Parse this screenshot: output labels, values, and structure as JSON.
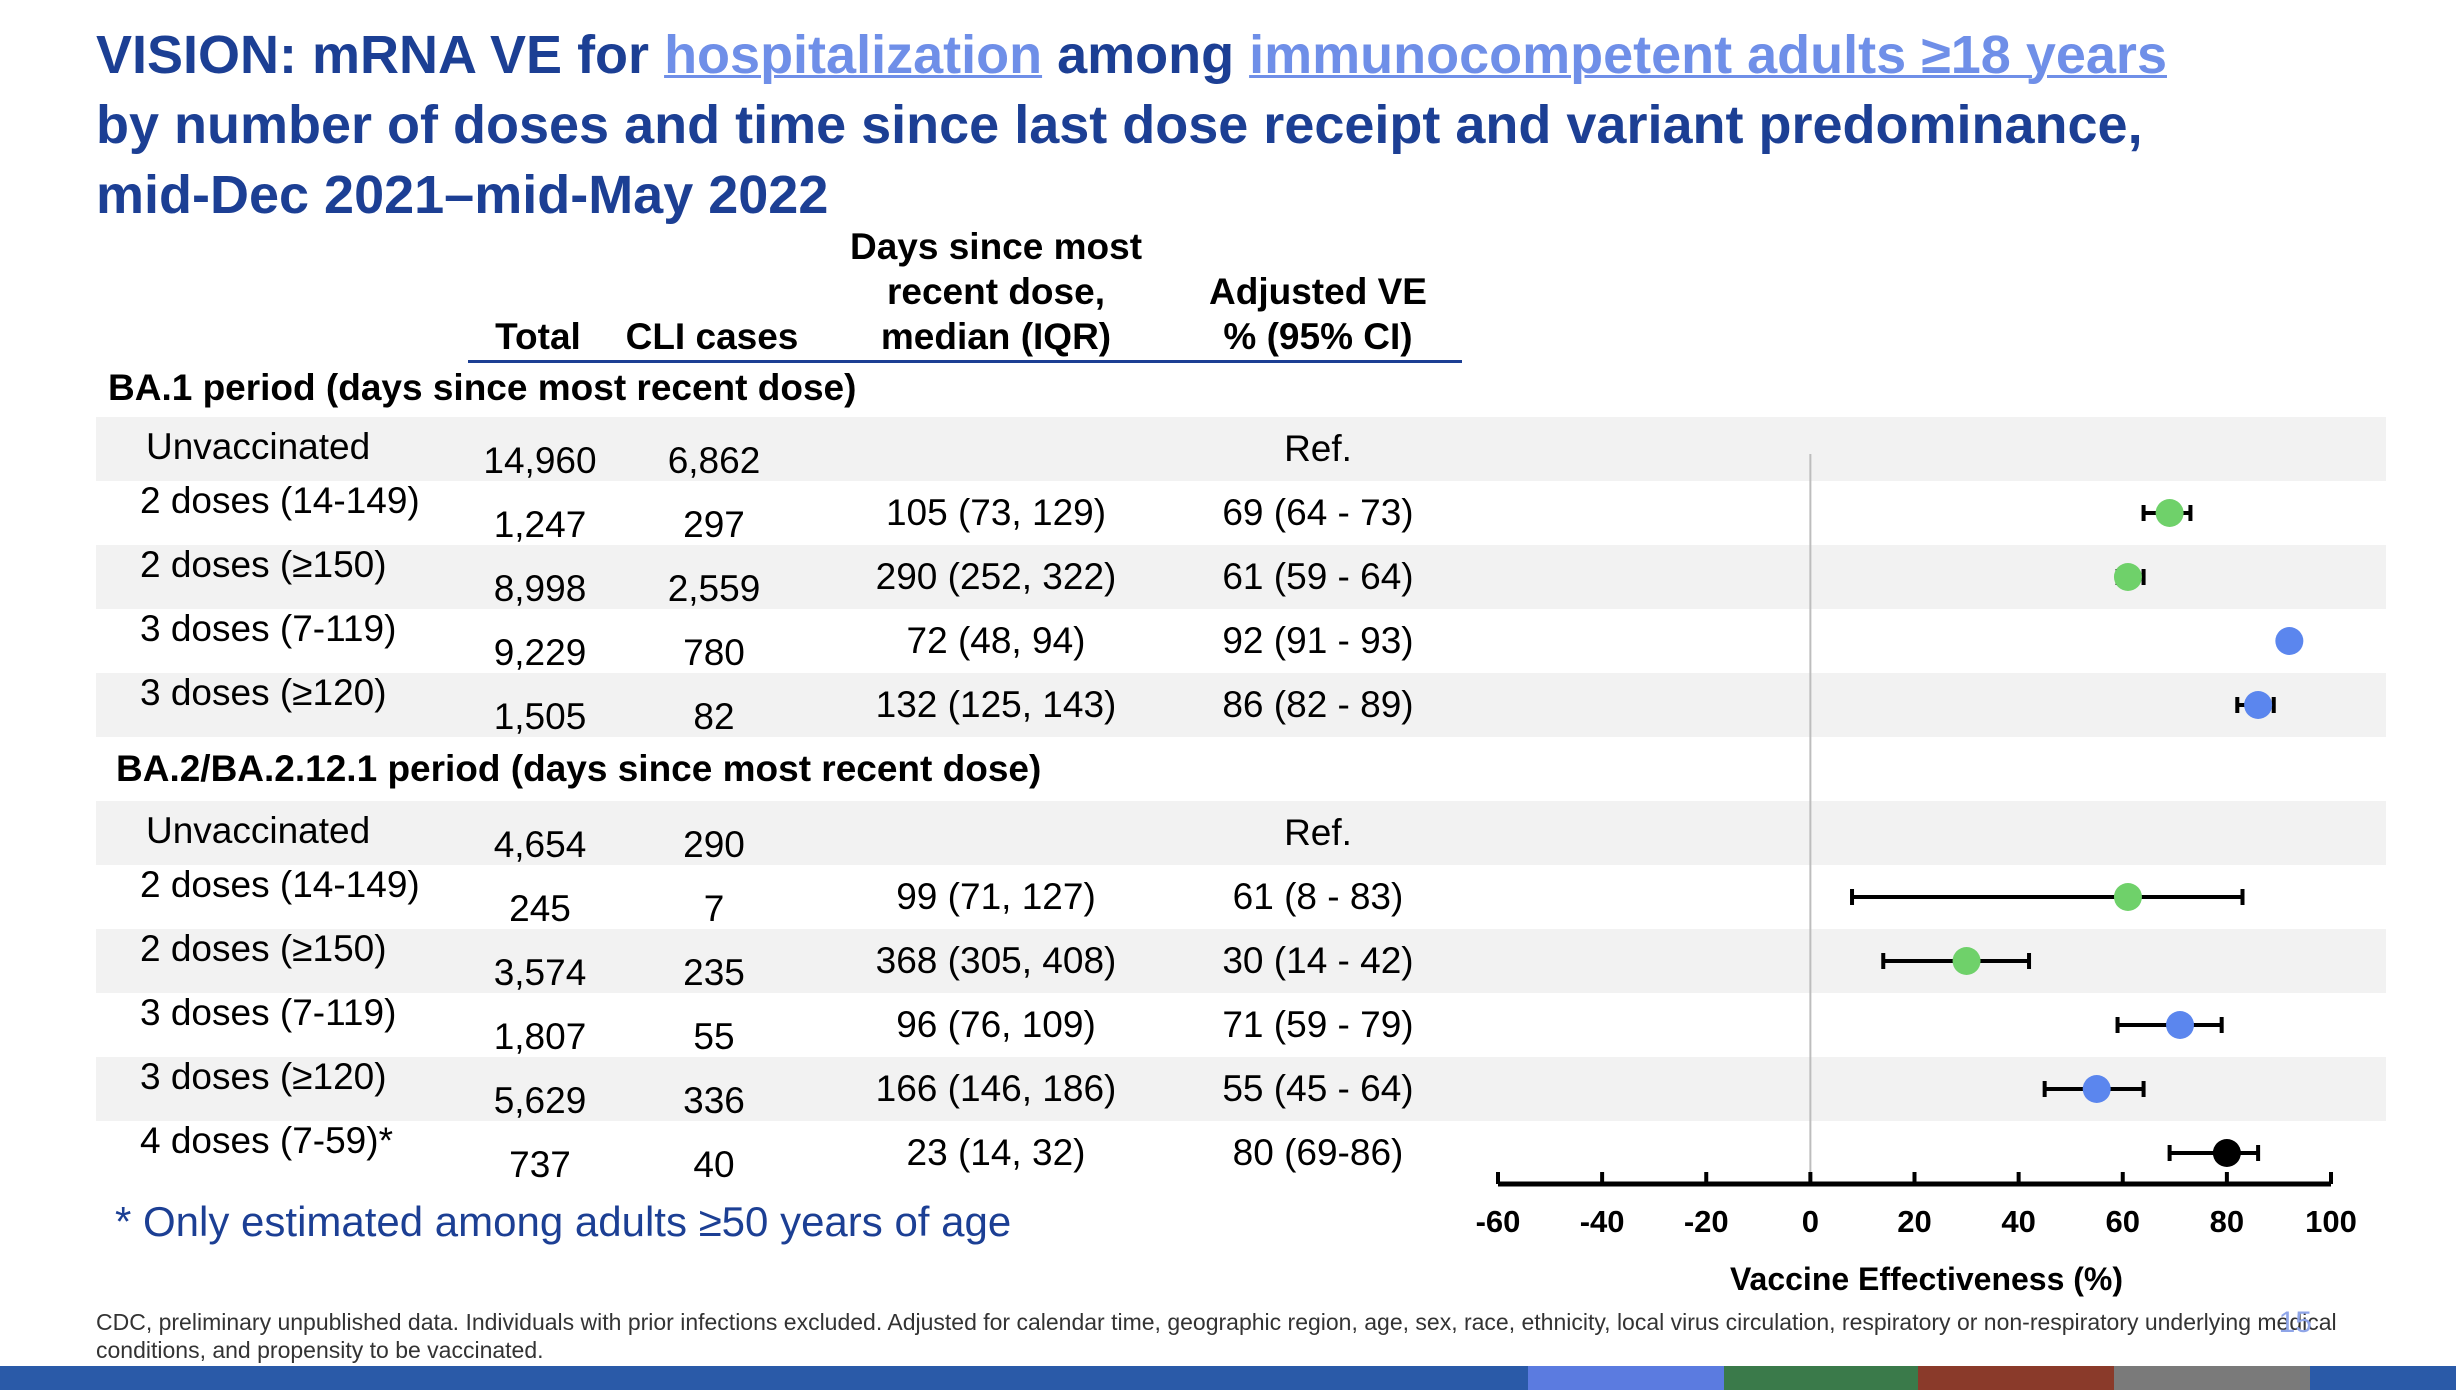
{
  "title": {
    "prefix": "VISION: mRNA VE for ",
    "link1": "hospitalization",
    "middle": " among ",
    "link2": "immunocompetent adults ≥18 years",
    "line2": "by number of doses and time since last dose receipt and variant predominance,",
    "line3": "mid-Dec 2021–mid-May 2022"
  },
  "table": {
    "headers": {
      "total": "Total",
      "cli": "CLI cases",
      "days_l1": "Days since most",
      "days_l2": "recent dose,",
      "days_l3": "median (IQR)",
      "ve_l1": "Adjusted VE",
      "ve_l2": "% (95% CI)"
    },
    "periods": [
      {
        "label": "BA.1 period (days since most recent dose)",
        "rows": [
          {
            "label": "Unvaccinated",
            "total": "14,960",
            "cli": "6,862",
            "days": "",
            "ve": "Ref."
          },
          {
            "label": "2 doses (14-149)",
            "total": "1,247",
            "cli": "297",
            "days": "105 (73, 129)",
            "ve": "69 (64 - 73)"
          },
          {
            "label": "2 doses (≥150)",
            "total": "8,998",
            "cli": "2,559",
            "days": "290 (252, 322)",
            "ve": "61 (59 - 64)"
          },
          {
            "label": "3 doses (7-119)",
            "total": "9,229",
            "cli": "780",
            "days": "72 (48, 94)",
            "ve": "92 (91 - 93)"
          },
          {
            "label": "3 doses (≥120)",
            "total": "1,505",
            "cli": "82",
            "days": "132 (125, 143)",
            "ve": "86 (82 - 89)"
          }
        ]
      },
      {
        "label": "BA.2/BA.2.12.1 period (days since most recent dose)",
        "rows": [
          {
            "label": "Unvaccinated",
            "total": "4,654",
            "cli": "290",
            "days": "",
            "ve": "Ref."
          },
          {
            "label": "2 doses (14-149)",
            "total": "245",
            "cli": "7",
            "days": "99 (71, 127)",
            "ve": "61 (8 - 83)"
          },
          {
            "label": "2 doses (≥150)",
            "total": "3,574",
            "cli": "235",
            "days": "368 (305, 408)",
            "ve": "30 (14 - 42)"
          },
          {
            "label": "3 doses (7-119)",
            "total": "1,807",
            "cli": "55",
            "days": "96 (76, 109)",
            "ve": "71 (59 - 79)"
          },
          {
            "label": "3 doses (≥120)",
            "total": "5,629",
            "cli": "336",
            "days": "166 (146, 186)",
            "ve": "55 (45 - 64)"
          },
          {
            "label": "4 doses (7-59)*",
            "total": "737",
            "cli": "40",
            "days": "23 (14, 32)",
            "ve": "80 (69-86)"
          }
        ]
      }
    ]
  },
  "chart_data": {
    "type": "scatter",
    "xlabel": "Vaccine Effectiveness (%)",
    "xlim": [
      -60,
      100
    ],
    "xticks": [
      "-60",
      "-40",
      "-20",
      "0",
      "20",
      "40",
      "60",
      "80",
      "100"
    ],
    "reference_line": 0,
    "points": [
      {
        "row": "BA.1 2 doses (14-149)",
        "ve": 69,
        "lo": 64,
        "hi": 73,
        "color": "#6fd16a"
      },
      {
        "row": "BA.1 2 doses (≥150)",
        "ve": 61,
        "lo": 59,
        "hi": 64,
        "color": "#6fd16a"
      },
      {
        "row": "BA.1 3 doses (7-119)",
        "ve": 92,
        "lo": 91,
        "hi": 93,
        "color": "#5b86ee"
      },
      {
        "row": "BA.1 3 doses (≥120)",
        "ve": 86,
        "lo": 82,
        "hi": 89,
        "color": "#5b86ee"
      },
      {
        "row": "BA.2 2 doses (14-149)",
        "ve": 61,
        "lo": 8,
        "hi": 83,
        "color": "#6fd16a"
      },
      {
        "row": "BA.2 2 doses (≥150)",
        "ve": 30,
        "lo": 14,
        "hi": 42,
        "color": "#6fd16a"
      },
      {
        "row": "BA.2 3 doses (7-119)",
        "ve": 71,
        "lo": 59,
        "hi": 79,
        "color": "#5b86ee"
      },
      {
        "row": "BA.2 3 doses (≥120)",
        "ve": 55,
        "lo": 45,
        "hi": 64,
        "color": "#5b86ee"
      },
      {
        "row": "BA.2 4 doses (7-59)*",
        "ve": 80,
        "lo": 69,
        "hi": 86,
        "color": "#000000"
      }
    ]
  },
  "footnote": "* Only estimated among adults ≥50 years of age",
  "source": "CDC, preliminary unpublished data. Individuals with prior infections excluded. Adjusted for calendar time, geographic region, age, sex, race, ethnicity, local virus circulation, respiratory or non-respiratory underlying medical conditions, and propensity to be vaccinated.",
  "slide_number": "15",
  "bottom_bar_colors": [
    "#2a5aa8",
    "#5b7be0",
    "#3a7a4a",
    "#8a3a2a",
    "#7a7a7a",
    "#2a5aa8"
  ]
}
